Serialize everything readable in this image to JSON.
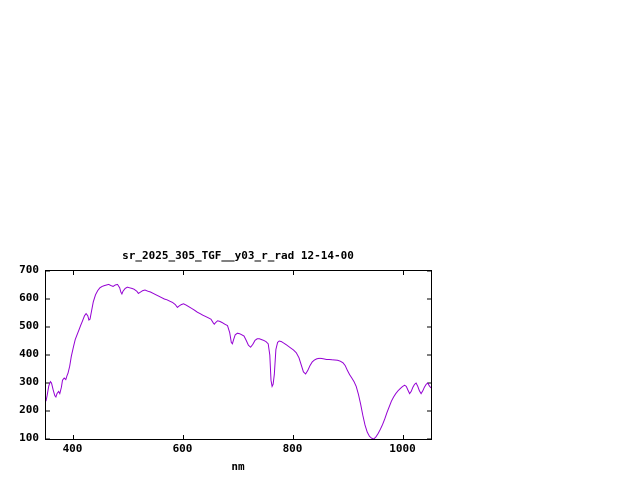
{
  "window": {
    "background": "#ffffff"
  },
  "chart": {
    "title": "sr_2025_305_TGF__y03_r_rad 12-14-00",
    "xlabel": "nm",
    "line_color": "#9400d3",
    "axis_color": "#000000",
    "x_ticks": [
      400,
      600,
      800,
      1000
    ],
    "y_ticks": [
      100,
      200,
      300,
      400,
      500,
      600,
      700
    ],
    "xlim": [
      350,
      1050
    ],
    "ylim": [
      100,
      700
    ]
  },
  "chart_data": {
    "type": "line",
    "title": "sr_2025_305_TGF__y03_r_rad 12-14-00",
    "xlabel": "nm",
    "ylabel": "",
    "xlim": [
      350,
      1050
    ],
    "ylim": [
      100,
      700
    ],
    "grid": false,
    "legend": false,
    "series": [
      {
        "name": "sr_2025_305_TGF__y03_r_rad 12-14-00",
        "x": [
          350,
          352,
          355,
          358,
          360,
          363,
          366,
          368,
          370,
          373,
          375,
          378,
          380,
          383,
          386,
          388,
          390,
          393,
          396,
          400,
          403,
          406,
          410,
          413,
          416,
          420,
          423,
          426,
          428,
          430,
          433,
          436,
          440,
          444,
          448,
          452,
          456,
          460,
          464,
          468,
          472,
          476,
          480,
          484,
          486,
          488,
          490,
          494,
          498,
          502,
          506,
          510,
          515,
          518,
          522,
          526,
          530,
          535,
          540,
          545,
          550,
          555,
          560,
          565,
          570,
          575,
          580,
          585,
          589,
          592,
          596,
          600,
          605,
          610,
          615,
          620,
          625,
          630,
          635,
          640,
          645,
          650,
          654,
          656,
          658,
          662,
          666,
          670,
          675,
          680,
          684,
          687,
          689,
          691,
          694,
          698,
          702,
          706,
          710,
          714,
          718,
          722,
          726,
          730,
          734,
          738,
          742,
          746,
          750,
          754,
          757,
          759,
          761,
          763,
          765,
          768,
          771,
          774,
          778,
          782,
          786,
          790,
          795,
          800,
          805,
          810,
          814,
          818,
          822,
          826,
          830,
          834,
          838,
          842,
          846,
          850,
          855,
          860,
          865,
          870,
          875,
          880,
          885,
          890,
          894,
          898,
          902,
          906,
          910,
          914,
          918,
          922,
          926,
          930,
          934,
          938,
          942,
          946,
          950,
          954,
          958,
          962,
          966,
          970,
          974,
          978,
          982,
          986,
          990,
          994,
          998,
          1002,
          1005,
          1008,
          1011,
          1014,
          1017,
          1020,
          1023,
          1026,
          1029,
          1032,
          1035,
          1038,
          1041,
          1044,
          1047,
          1050
        ],
        "y": [
          235,
          255,
          290,
          305,
          300,
          275,
          255,
          250,
          262,
          270,
          262,
          285,
          310,
          318,
          312,
          325,
          335,
          360,
          395,
          430,
          455,
          470,
          490,
          505,
          520,
          540,
          548,
          540,
          525,
          528,
          560,
          590,
          615,
          630,
          640,
          645,
          648,
          650,
          652,
          648,
          645,
          650,
          652,
          640,
          625,
          618,
          628,
          638,
          642,
          640,
          638,
          635,
          628,
          620,
          625,
          630,
          632,
          628,
          625,
          620,
          615,
          610,
          605,
          600,
          597,
          592,
          588,
          580,
          570,
          575,
          580,
          583,
          578,
          572,
          566,
          560,
          553,
          548,
          542,
          538,
          533,
          528,
          515,
          510,
          515,
          522,
          520,
          516,
          510,
          505,
          480,
          445,
          440,
          455,
          472,
          478,
          476,
          472,
          468,
          452,
          435,
          428,
          438,
          452,
          458,
          458,
          455,
          452,
          448,
          440,
          400,
          310,
          288,
          295,
          330,
          420,
          445,
          450,
          448,
          443,
          438,
          432,
          425,
          418,
          408,
          390,
          365,
          340,
          332,
          345,
          362,
          375,
          382,
          386,
          388,
          388,
          386,
          384,
          384,
          383,
          382,
          381,
          378,
          372,
          362,
          345,
          330,
          318,
          305,
          288,
          260,
          225,
          185,
          150,
          125,
          110,
          103,
          100,
          108,
          120,
          135,
          152,
          172,
          195,
          215,
          235,
          250,
          262,
          272,
          280,
          287,
          292,
          288,
          275,
          262,
          270,
          285,
          295,
          300,
          288,
          272,
          262,
          272,
          285,
          295,
          300,
          290,
          282
        ]
      }
    ]
  }
}
